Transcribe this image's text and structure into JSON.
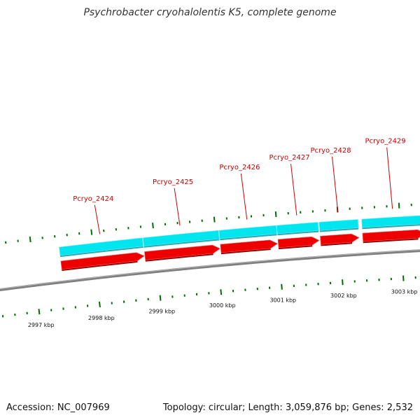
{
  "title": "Psychrobacter cryohalolentis K5, complete genome",
  "accession_text": "Accession: NC_007969",
  "summary_text": "Topology: circular; Length: 3,059,876 bp; Genes: 2,532",
  "colors": {
    "backbone": "#808080",
    "cds_strand": "#00e5ee",
    "gene_arrow": "#ee0000",
    "tick": "#007000",
    "label": "#cc0000"
  },
  "chart_data": {
    "type": "genome-map",
    "view_kbp": [
      2996.6,
      3003.4
    ],
    "ticks_kbp": [
      {
        "label": "2997 kbp",
        "kbp": 2997
      },
      {
        "label": "2998 kbp",
        "kbp": 2998
      },
      {
        "label": "2999 kbp",
        "kbp": 2999
      },
      {
        "label": "3000 kbp",
        "kbp": 3000
      },
      {
        "label": "3001 kbp",
        "kbp": 3001
      },
      {
        "label": "3002 kbp",
        "kbp": 3002
      },
      {
        "label": "3003 kbp",
        "kbp": 3003
      }
    ],
    "genes": [
      {
        "name": "Pcryo_2424",
        "start_kbp": 2997.45,
        "end_kbp": 2998.81
      },
      {
        "name": "Pcryo_2425",
        "start_kbp": 2998.82,
        "end_kbp": 3000.05
      },
      {
        "name": "Pcryo_2426",
        "start_kbp": 3000.06,
        "end_kbp": 3000.99
      },
      {
        "name": "Pcryo_2427",
        "start_kbp": 3001.0,
        "end_kbp": 3001.67
      },
      {
        "name": "Pcryo_2428",
        "start_kbp": 3001.69,
        "end_kbp": 3002.32
      },
      {
        "name": "Pcryo_2429",
        "start_kbp": 3002.38,
        "end_kbp": 3003.4
      }
    ]
  }
}
